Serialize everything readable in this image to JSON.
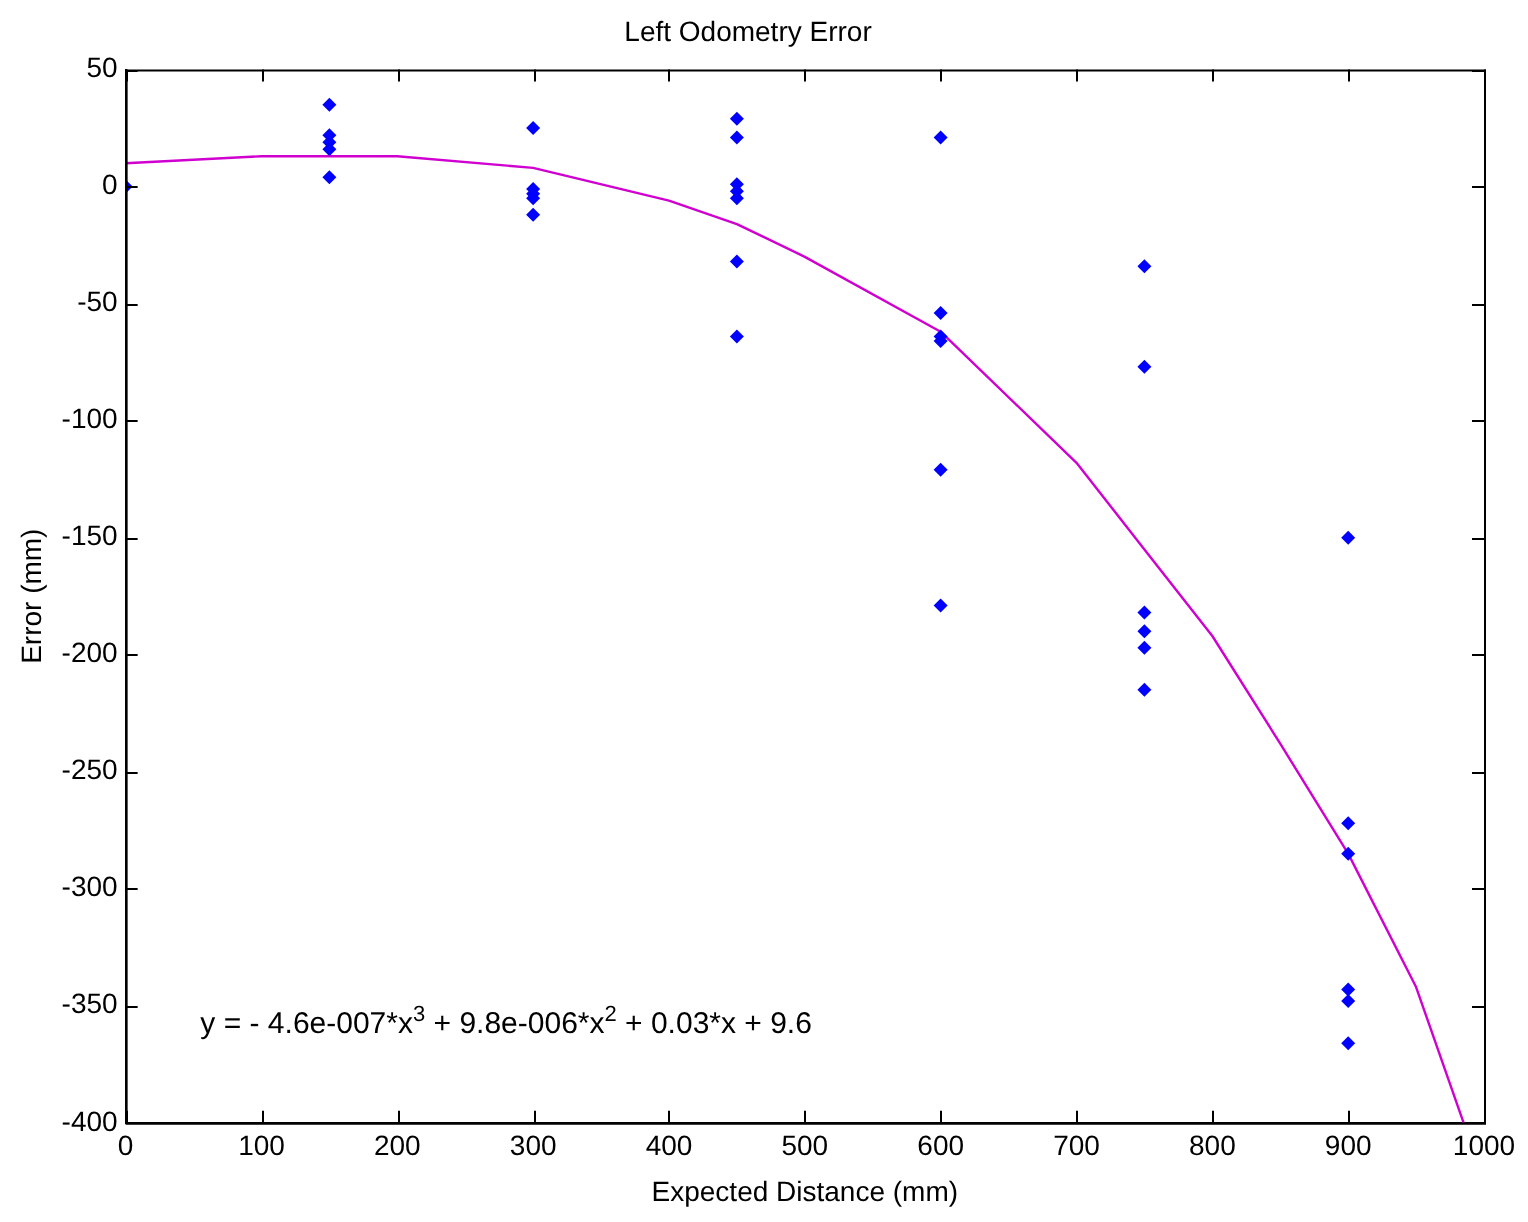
{
  "chart_data": {
    "type": "scatter",
    "title": "Left Odometry Error",
    "xlabel": "Expected Distance (mm)",
    "ylabel": "Error (mm)",
    "xlim": [
      0,
      1000
    ],
    "xticks": [
      0,
      100,
      200,
      300,
      400,
      500,
      600,
      700,
      800,
      900,
      1000
    ],
    "ylim": [
      -400,
      50
    ],
    "yticks": [
      -400,
      -350,
      -300,
      -250,
      -200,
      -150,
      -100,
      -50,
      0,
      50
    ],
    "grid": false,
    "legend": false,
    "marker": "diamond",
    "series": [
      {
        "type": "scatter",
        "color": "#0000ff",
        "x": [
          0,
          150,
          150,
          150,
          150,
          150,
          300,
          300,
          300,
          300,
          300,
          450,
          450,
          450,
          450,
          450,
          450,
          450,
          600,
          600,
          600,
          600,
          600,
          600,
          750,
          750,
          750,
          750,
          750,
          750,
          900,
          900,
          900,
          900,
          900,
          900
        ],
        "values": [
          0,
          35,
          22,
          19,
          16,
          4,
          25,
          -1,
          -3,
          -5,
          -12,
          29,
          21,
          1,
          -2,
          -5,
          -32,
          -64,
          21,
          -54,
          -64,
          -66,
          -121,
          -179,
          -34,
          -77,
          -182,
          -190,
          -197,
          -215,
          -150,
          -272,
          -285,
          -343,
          -348,
          -366
        ]
      },
      {
        "type": "line",
        "color": "#d000d0",
        "marker": "none",
        "x": [
          0,
          100,
          200,
          300,
          400,
          450,
          500,
          600,
          700,
          750,
          800,
          850,
          900,
          950,
          985
        ],
        "values": [
          10,
          13,
          13,
          8,
          -6,
          -16,
          -30,
          -62,
          -118,
          -155,
          -192,
          -238,
          -285,
          -342,
          -400
        ]
      }
    ],
    "annotations": [
      "y = - 4.6e-007*x$^{3}$ + 9.8e-006*x$^{2}$ + 0.03*x + 9.6"
    ]
  }
}
